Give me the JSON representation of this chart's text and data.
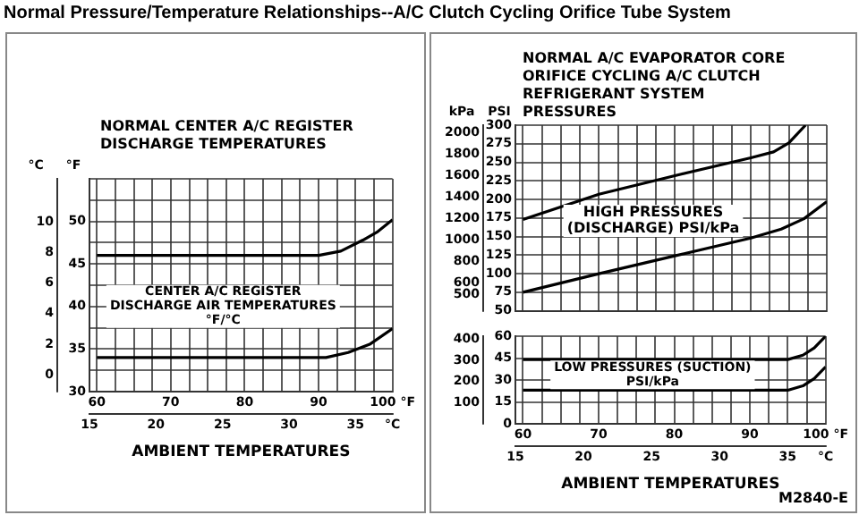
{
  "chart_data": [
    {
      "type": "line",
      "title": "Normal Pressure/Temperature Relationships--A/C Clutch Cycling Orifice Tube System",
      "subtitle": "NORMAL CENTER A/C REGISTER DISCHARGE TEMPERATURES",
      "xlabel": "AMBIENT TEMPERATURES",
      "ylabel": "°F",
      "y2label": "°C",
      "grid": true,
      "legend": false,
      "annotations": [
        "CENTER A/C REGISTER DISCHARGE AIR TEMPERATURES °F/°C"
      ],
      "xlim": [
        59,
        100
      ],
      "xticks": [
        60,
        {
          "value": 62.5,
          "label": null
        },
        {
          "value": 65,
          "label": null
        },
        {
          "value": 67.5,
          "label": null
        },
        70,
        {
          "value": 72.5,
          "label": null
        },
        {
          "value": 75,
          "label": null
        },
        {
          "value": 77.5,
          "label": null
        },
        80,
        {
          "value": 82.5,
          "label": null
        },
        {
          "value": 85,
          "label": null
        },
        {
          "value": 87.5,
          "label": null
        },
        90,
        {
          "value": 92.5,
          "label": null
        },
        {
          "value": 95,
          "label": null
        },
        {
          "value": 97.5,
          "label": null
        },
        {
          "value": 100,
          "label": "100 °F"
        }
      ],
      "x2lim": [
        15,
        37.78
      ],
      "x2ticks": [
        15,
        20,
        25,
        30,
        35,
        {
          "value": 37.78,
          "label": "°C"
        }
      ],
      "ylim": [
        30,
        55
      ],
      "yticks": [
        30,
        {
          "value": 32.5,
          "label": null
        },
        35,
        {
          "value": 37.5,
          "label": null
        },
        40,
        {
          "value": 42.5,
          "label": null
        },
        45,
        {
          "value": 47.5,
          "label": null
        },
        50,
        {
          "value": 52.5,
          "label": null
        },
        {
          "value": 55,
          "label": null
        }
      ],
      "y2lim": [
        -1.1,
        12.8
      ],
      "y2ticks": [
        0,
        2,
        4,
        6,
        8,
        10
      ],
      "series": [
        {
          "color": "#000000",
          "x": [
            60,
            90,
            93,
            96,
            98,
            100
          ],
          "values": [
            46,
            46,
            46.5,
            47.8,
            48.8,
            50.2
          ]
        },
        {
          "color": "#000000",
          "x": [
            60,
            91,
            94,
            97,
            100
          ],
          "values": [
            34,
            34,
            34.6,
            35.6,
            37.4
          ]
        }
      ]
    },
    {
      "type": "line",
      "title": "NORMAL A/C EVAPORATOR CORE ORIFICE CYCLING A/C CLUTCH REFRIGERANT SYSTEM PRESSURES",
      "ylabel": "PSI",
      "y2label": "kPa",
      "grid": true,
      "legend": false,
      "tick_labels": "y",
      "annotations": [
        "HIGH PRESSURES (DISCHARGE) PSI/kPa"
      ],
      "xlim": [
        59,
        100
      ],
      "xticks": [
        60,
        62.5,
        65,
        67.5,
        70,
        72.5,
        75,
        77.5,
        80,
        82.5,
        85,
        87.5,
        90,
        92.5,
        95,
        97.5,
        100
      ],
      "ylim": [
        50,
        300
      ],
      "yticks": [
        50,
        75,
        100,
        125,
        150,
        175,
        200,
        225,
        250,
        275,
        300
      ],
      "y2lim": [
        344.7,
        2068.4
      ],
      "y2ticks": [
        500,
        600,
        800,
        1000,
        1200,
        1400,
        1600,
        1800,
        2000
      ],
      "series": [
        {
          "color": "#000000",
          "x": [
            60,
            70,
            80,
            90,
            93,
            95,
            97.2
          ],
          "values": [
            173,
            207,
            232,
            256,
            264,
            276,
            300
          ]
        },
        {
          "color": "#000000",
          "x": [
            60,
            70,
            80,
            90,
            94,
            97,
            100
          ],
          "values": [
            75,
            100,
            124,
            148,
            160,
            174,
            197
          ]
        }
      ]
    },
    {
      "type": "line",
      "xlabel": "AMBIENT TEMPERATURES",
      "grid": true,
      "legend": false,
      "annotations": [
        "LOW PRESSURES (SUCTION) PSI/kPa",
        "M2840-E"
      ],
      "xlim": [
        59,
        100
      ],
      "xticks": [
        60,
        {
          "value": 62.5,
          "label": null
        },
        {
          "value": 65,
          "label": null
        },
        {
          "value": 67.5,
          "label": null
        },
        70,
        {
          "value": 72.5,
          "label": null
        },
        {
          "value": 75,
          "label": null
        },
        {
          "value": 77.5,
          "label": null
        },
        80,
        {
          "value": 82.5,
          "label": null
        },
        {
          "value": 85,
          "label": null
        },
        {
          "value": 87.5,
          "label": null
        },
        90,
        {
          "value": 92.5,
          "label": null
        },
        {
          "value": 95,
          "label": null
        },
        {
          "value": 97.5,
          "label": null
        },
        {
          "value": 100,
          "label": "100 °F"
        }
      ],
      "x2lim": [
        15,
        37.78
      ],
      "x2ticks": [
        15,
        20,
        25,
        30,
        35,
        {
          "value": 37.78,
          "label": "°C"
        }
      ],
      "ylim": [
        0,
        60
      ],
      "yticks": [
        0,
        15,
        30,
        45,
        60
      ],
      "y2lim": [
        0,
        413.7
      ],
      "y2ticks": [
        100,
        200,
        300,
        400
      ],
      "series": [
        {
          "color": "#000000",
          "x": [
            60,
            95,
            97,
            98.5,
            100
          ],
          "values": [
            44,
            44,
            47,
            52,
            60
          ]
        },
        {
          "color": "#000000",
          "x": [
            60,
            95,
            97,
            98.5,
            100
          ],
          "values": [
            23,
            23,
            26,
            31,
            39
          ]
        }
      ]
    }
  ]
}
